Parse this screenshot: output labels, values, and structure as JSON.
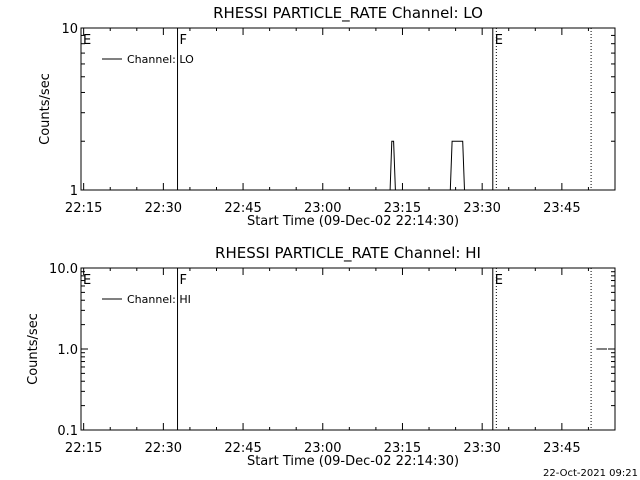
{
  "timestamp": "22-Oct-2021 09:21",
  "chart_data": [
    {
      "type": "line",
      "title": "RHESSI PARTICLE_RATE Channel: LO",
      "xlabel": "Start Time (09-Dec-02 22:14:30)",
      "ylabel": "Counts/sec",
      "yscale": "log",
      "ylim": [
        1,
        10
      ],
      "yticks": [
        {
          "v": 1,
          "label": "1"
        },
        {
          "v": 10,
          "label": "10"
        }
      ],
      "xlim": [
        "22:14:30",
        "23:55:00"
      ],
      "xticks": [
        "22:15",
        "22:30",
        "22:45",
        "23:00",
        "23:15",
        "23:30",
        "23:45"
      ],
      "legend": {
        "position": "top-left",
        "label": "Channel: LO"
      },
      "event_markers": [
        {
          "time": "22:14:30",
          "label": "E",
          "style": "solid"
        },
        {
          "time": "22:32:40",
          "label": "F",
          "style": "solid"
        },
        {
          "time": "23:32:00",
          "label": "E",
          "style": "solid"
        },
        {
          "time": "23:32:40",
          "label": "",
          "style": "dotted"
        },
        {
          "time": "23:50:30",
          "label": "",
          "style": "dotted"
        }
      ],
      "series": [
        {
          "x": [
            "22:32:40",
            "23:12:40",
            "23:13:00",
            "23:13:20",
            "23:13:40",
            "23:24:00",
            "23:24:20",
            "23:25:00",
            "23:26:20",
            "23:26:40",
            "23:32:00"
          ],
          "y": [
            1,
            1,
            2,
            2,
            1,
            1,
            2,
            2,
            2,
            1,
            1
          ]
        }
      ]
    },
    {
      "type": "line",
      "title": "RHESSI PARTICLE_RATE Channel: HI",
      "xlabel": "Start Time (09-Dec-02 22:14:30)",
      "ylabel": "Counts/sec",
      "yscale": "log",
      "ylim": [
        0.1,
        10
      ],
      "yticks": [
        {
          "v": 0.1,
          "label": "0.1"
        },
        {
          "v": 1,
          "label": "1.0"
        },
        {
          "v": 10,
          "label": "10.0"
        }
      ],
      "xlim": [
        "22:14:30",
        "23:55:00"
      ],
      "xticks": [
        "22:15",
        "22:30",
        "22:45",
        "23:00",
        "23:15",
        "23:30",
        "23:45"
      ],
      "legend": {
        "position": "top-left",
        "label": "Channel: HI"
      },
      "event_markers": [
        {
          "time": "22:14:30",
          "label": "E",
          "style": "solid"
        },
        {
          "time": "22:32:40",
          "label": "F",
          "style": "solid"
        },
        {
          "time": "23:32:00",
          "label": "E",
          "style": "solid"
        },
        {
          "time": "23:32:40",
          "label": "",
          "style": "dotted"
        },
        {
          "time": "23:50:30",
          "label": "",
          "style": "dotted"
        }
      ],
      "series": [
        {
          "x": [
            "23:51:30",
            "23:53:30"
          ],
          "y": [
            1.0,
            1.0
          ]
        }
      ]
    }
  ]
}
